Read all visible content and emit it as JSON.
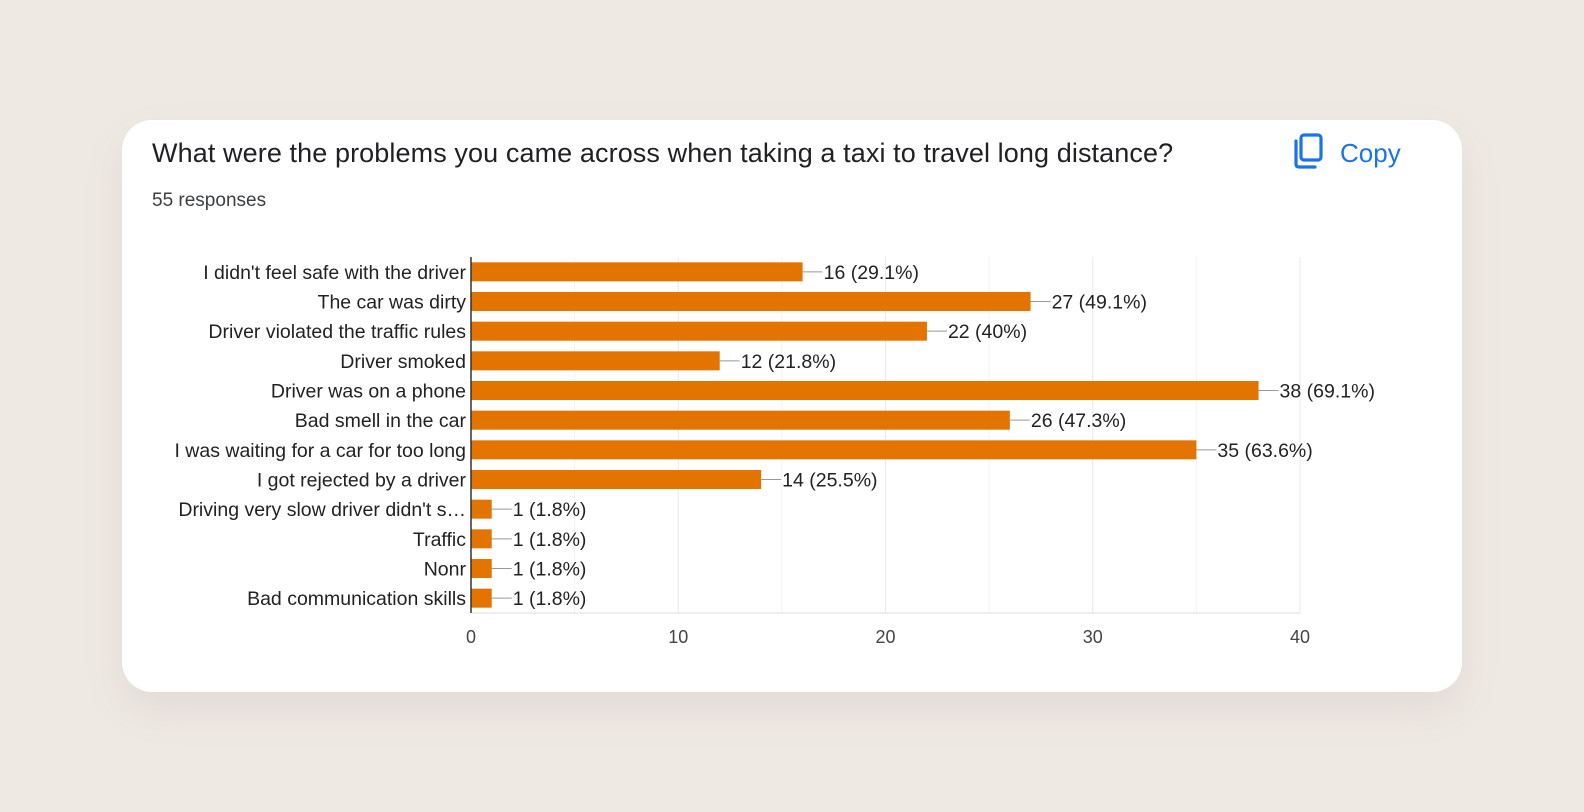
{
  "card": {
    "title": "What were the problems you came across when taking a taxi to travel long distance?",
    "responses": "55 responses",
    "copy_label": "Copy",
    "copy_icon": "copy-icon"
  },
  "colors": {
    "bar": "#e37400",
    "accent": "#1a73e8",
    "grid": "#e8e8e8",
    "axis": "#333333"
  },
  "chart_data": {
    "type": "bar",
    "orientation": "horizontal",
    "categories": [
      "I didn't feel safe with the driver",
      "The car was dirty",
      "Driver violated the traffic rules",
      "Driver smoked",
      "Driver was on a phone",
      "Bad smell in the car",
      "I was waiting for a car for too long",
      "I got rejected by a driver",
      "Driving very slow driver didn't s…",
      "Traffic",
      "Nonr",
      "Bad communication skills"
    ],
    "values": [
      16,
      27,
      22,
      12,
      38,
      26,
      35,
      14,
      1,
      1,
      1,
      1
    ],
    "data_labels": [
      "16 (29.1%)",
      "27 (49.1%)",
      "22 (40%)",
      "12 (21.8%)",
      "38 (69.1%)",
      "26 (47.3%)",
      "35 (63.6%)",
      "14 (25.5%)",
      "1 (1.8%)",
      "1 (1.8%)",
      "1 (1.8%)",
      "1 (1.8%)"
    ],
    "x_ticks": [
      0,
      10,
      20,
      30,
      40
    ],
    "xlim": [
      0,
      40
    ],
    "grid": true
  }
}
